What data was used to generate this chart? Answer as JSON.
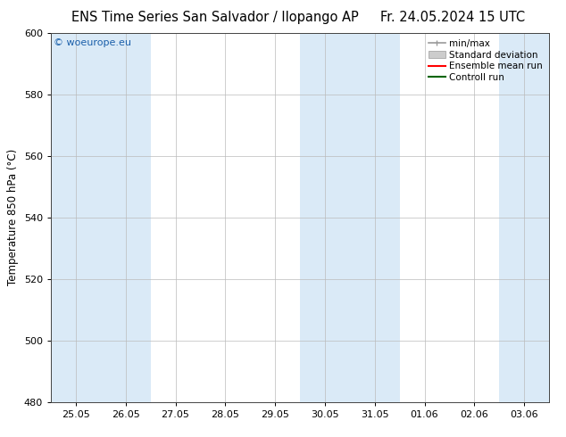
{
  "title_left": "ENS Time Series San Salvador / Ilopango AP",
  "title_right": "Fr. 24.05.2024 15 UTC",
  "ylabel": "Temperature 850 hPa (°C)",
  "ylim": [
    480,
    600
  ],
  "yticks": [
    480,
    500,
    520,
    540,
    560,
    580,
    600
  ],
  "xtick_labels": [
    "25.05",
    "26.05",
    "27.05",
    "28.05",
    "29.05",
    "30.05",
    "31.05",
    "01.06",
    "02.06",
    "03.06"
  ],
  "watermark": "© woeurope.eu",
  "legend_entries": [
    "min/max",
    "Standard deviation",
    "Ensemble mean run",
    "Controll run"
  ],
  "bg_color": "#ffffff",
  "band_color": "#daeaf7",
  "grid_color": "#bbbbbb",
  "mean_color": "#ff0000",
  "control_color": "#006400",
  "minmax_color": "#999999",
  "std_color": "#cccccc",
  "shaded_columns": [
    0,
    1,
    5,
    6,
    9
  ],
  "n_xticks": 10,
  "title_fontsize": 10.5,
  "label_fontsize": 8.5,
  "tick_fontsize": 8
}
